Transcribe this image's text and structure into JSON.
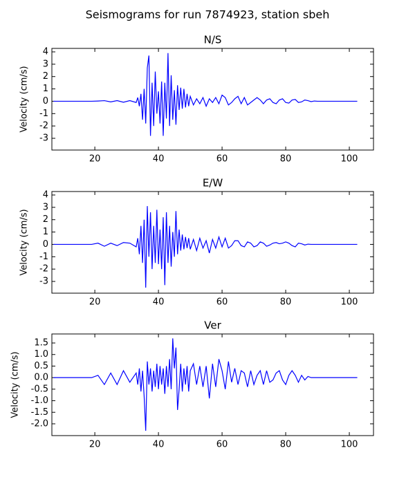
{
  "title": "Seismograms for run 7874923, station sbeh",
  "chart_data": [
    {
      "type": "line",
      "title": "N/S",
      "ylabel": "Velocity (cm/s)",
      "color": "#0000ff",
      "xlim": [
        6.5,
        107.6
      ],
      "xticks": [
        20,
        40,
        60,
        80,
        100
      ],
      "ylim": [
        -3.95,
        4.28
      ],
      "yticks": [
        -3,
        -2,
        -1,
        0,
        1,
        2,
        3,
        4
      ],
      "x": [
        7,
        9,
        11,
        13,
        15,
        17,
        19,
        21,
        23,
        25,
        27,
        29,
        31,
        33,
        33.5,
        34,
        34.5,
        35,
        35.5,
        36,
        36.5,
        37,
        37.5,
        38,
        38.5,
        39,
        39.5,
        40,
        40.5,
        41,
        41.5,
        42,
        42.5,
        43,
        43.5,
        44,
        44.5,
        45,
        45.5,
        46,
        46.5,
        47,
        47.5,
        48,
        48.5,
        49,
        49.5,
        50,
        51,
        52,
        53,
        54,
        55,
        56,
        57,
        58,
        59,
        60,
        61,
        62,
        63,
        64,
        65,
        66,
        67,
        68,
        69,
        70,
        71,
        72,
        73,
        74,
        75,
        76,
        77,
        78,
        79,
        80,
        81,
        82,
        83,
        84,
        85,
        86,
        87,
        88,
        89,
        90,
        91,
        92,
        93,
        94,
        95,
        96,
        97,
        98,
        99,
        100,
        101,
        102,
        102.5
      ],
      "values": [
        0,
        0,
        0,
        0,
        0,
        0,
        0,
        0.02,
        0.05,
        -0.05,
        0.05,
        -0.08,
        0.05,
        -0.1,
        0.3,
        -0.4,
        0.6,
        -1.5,
        1.0,
        -1.8,
        2.7,
        3.7,
        -2.8,
        1.5,
        -2.0,
        2.4,
        -1.0,
        0.8,
        -1.8,
        1.6,
        -2.8,
        1.5,
        -1.4,
        3.9,
        -2.0,
        2.1,
        -1.5,
        0.9,
        -1.9,
        1.3,
        -0.7,
        1.1,
        -0.6,
        1.0,
        -0.5,
        0.6,
        -0.4,
        0.4,
        -0.3,
        0.2,
        -0.2,
        0.3,
        -0.4,
        0.2,
        -0.1,
        0.3,
        -0.2,
        0.5,
        0.3,
        -0.3,
        -0.1,
        0.2,
        0.4,
        -0.2,
        0.3,
        -0.3,
        -0.1,
        0.1,
        0.3,
        0.1,
        -0.2,
        0.1,
        0.2,
        -0.1,
        -0.2,
        0.1,
        0.2,
        -0.1,
        -0.15,
        0.1,
        0.15,
        -0.1,
        -0.05,
        0.1,
        0.05,
        -0.03,
        0.02,
        0,
        0,
        0,
        0,
        0,
        0,
        0,
        0,
        0,
        0,
        0,
        0,
        0,
        0
      ]
    },
    {
      "type": "line",
      "title": "E/W",
      "ylabel": "Velocity (cm/s)",
      "color": "#0000ff",
      "xlim": [
        6.5,
        107.6
      ],
      "xticks": [
        20,
        40,
        60,
        80,
        100
      ],
      "ylim": [
        -3.95,
        4.28
      ],
      "yticks": [
        -3,
        -2,
        -1,
        0,
        1,
        2,
        3,
        4
      ],
      "x": [
        7,
        9,
        11,
        13,
        15,
        17,
        19,
        21,
        23,
        25,
        27,
        29,
        31,
        33,
        33.5,
        34,
        34.5,
        35,
        35.5,
        36,
        36.5,
        37,
        37.5,
        38,
        38.5,
        39,
        39.5,
        40,
        40.5,
        41,
        41.5,
        42,
        42.5,
        43,
        43.5,
        44,
        44.5,
        45,
        45.5,
        46,
        46.5,
        47,
        47.5,
        48,
        48.5,
        49,
        49.5,
        50,
        51,
        52,
        53,
        54,
        55,
        56,
        57,
        58,
        59,
        60,
        61,
        62,
        63,
        64,
        65,
        66,
        67,
        68,
        69,
        70,
        71,
        72,
        73,
        74,
        75,
        76,
        77,
        78,
        79,
        80,
        81,
        82,
        83,
        84,
        85,
        86,
        87,
        88,
        89,
        90,
        91,
        92,
        93,
        94,
        95,
        96,
        97,
        98,
        99,
        100,
        101,
        102,
        102.5
      ],
      "values": [
        0,
        0,
        0,
        0,
        0,
        0,
        0,
        0.1,
        -0.15,
        0.1,
        -0.1,
        0.15,
        0.1,
        -0.2,
        0.5,
        -0.8,
        1.5,
        -1.5,
        2.0,
        -3.5,
        3.1,
        -1.0,
        2.6,
        -2.0,
        1.5,
        -1.5,
        2.8,
        -1.6,
        1.2,
        -2.0,
        2.2,
        -3.3,
        2.6,
        -1.5,
        1.5,
        -1.8,
        1.0,
        -1.0,
        2.7,
        -0.8,
        1.2,
        -0.5,
        0.8,
        -0.4,
        0.6,
        -0.3,
        0.5,
        -0.4,
        0.4,
        -0.5,
        0.5,
        -0.3,
        0.3,
        -0.7,
        0.4,
        -0.3,
        0.6,
        -0.2,
        0.5,
        -0.3,
        -0.1,
        0.3,
        0.3,
        -0.1,
        -0.2,
        0.2,
        0.1,
        -0.2,
        -0.1,
        0.2,
        0.1,
        -0.15,
        -0.05,
        0.1,
        0.15,
        0.05,
        0.1,
        0.2,
        0.1,
        -0.1,
        -0.2,
        0.1,
        0.05,
        -0.05,
        0.02,
        0,
        0,
        0,
        0,
        0,
        0,
        0,
        0,
        0,
        0,
        0,
        0,
        0,
        0,
        0,
        0
      ]
    },
    {
      "type": "line",
      "title": "Ver",
      "ylabel": "Velocity (cm/s)",
      "color": "#0000ff",
      "xlim": [
        6.5,
        107.6
      ],
      "xticks": [
        20,
        40,
        60,
        80,
        100
      ],
      "ylim": [
        -2.51,
        1.89
      ],
      "yticks": [
        {
          "value": -2,
          "label": "-2.0"
        },
        -1.5,
        {
          "value": -1,
          "label": "-1.0"
        },
        -0.5,
        {
          "value": 0,
          "label": "0.0"
        },
        0.5,
        {
          "value": 1,
          "label": "1.0"
        },
        1.5
      ],
      "x": [
        7,
        9,
        11,
        13,
        15,
        17,
        19,
        21,
        23,
        25,
        27,
        29,
        31,
        33,
        33.5,
        34,
        34.5,
        35,
        35.5,
        36,
        36.5,
        37,
        37.5,
        38,
        38.5,
        39,
        39.5,
        40,
        40.5,
        41,
        41.5,
        42,
        42.5,
        43,
        43.5,
        44,
        44.5,
        45,
        45.5,
        46,
        46.5,
        47,
        47.5,
        48,
        48.5,
        49,
        49.5,
        50,
        51,
        52,
        53,
        54,
        55,
        56,
        57,
        58,
        59,
        60,
        61,
        62,
        63,
        64,
        65,
        66,
        67,
        68,
        69,
        70,
        71,
        72,
        73,
        74,
        75,
        76,
        77,
        78,
        79,
        80,
        81,
        82,
        83,
        84,
        85,
        86,
        87,
        88,
        89,
        90,
        91,
        92,
        93,
        94,
        95,
        96,
        97,
        98,
        99,
        100,
        101,
        102,
        102.5
      ],
      "values": [
        0,
        0,
        0,
        0,
        0,
        0,
        0,
        0.1,
        -0.3,
        0.2,
        -0.3,
        0.3,
        -0.2,
        0.2,
        -0.3,
        0.4,
        -0.6,
        0.3,
        -0.8,
        -2.3,
        0.7,
        -0.3,
        0.4,
        -0.6,
        0.3,
        -0.4,
        0.6,
        -0.5,
        0.5,
        -0.3,
        0.4,
        -0.7,
        0.5,
        -0.4,
        0.8,
        -0.5,
        1.7,
        0.4,
        1.3,
        -1.4,
        -0.5,
        0.6,
        -0.6,
        0.4,
        -0.3,
        0.5,
        -0.6,
        0.3,
        0.6,
        -0.3,
        0.5,
        -0.4,
        0.5,
        -0.9,
        0.6,
        -0.4,
        0.8,
        0.3,
        -0.5,
        0.7,
        -0.2,
        0.4,
        -0.3,
        0.3,
        0.2,
        -0.4,
        0.3,
        -0.3,
        0.1,
        0.3,
        -0.3,
        0.3,
        -0.2,
        -0.1,
        0.2,
        0.3,
        -0.1,
        -0.3,
        0.1,
        0.3,
        0.1,
        -0.2,
        0.1,
        -0.1,
        0.05,
        0,
        0,
        0,
        0,
        0,
        0,
        0,
        0,
        0,
        0,
        0,
        0,
        0,
        0,
        0,
        0
      ]
    }
  ]
}
